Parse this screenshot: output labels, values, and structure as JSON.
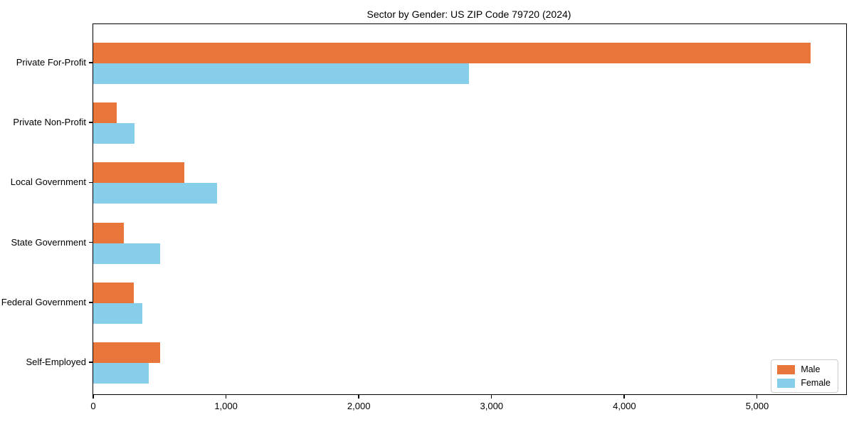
{
  "chart_data": {
    "type": "bar",
    "orientation": "horizontal",
    "title": "Sector by Gender: US ZIP Code 79720 (2024)",
    "categories": [
      "Private For-Profit",
      "Private Non-Profit",
      "Local Government",
      "State Government",
      "Federal Government",
      "Self-Employed"
    ],
    "series": [
      {
        "name": "Male",
        "color": "#e8763b",
        "values": [
          5400,
          175,
          685,
          230,
          305,
          505
        ]
      },
      {
        "name": "Female",
        "color": "#87ceeb",
        "values": [
          2830,
          310,
          935,
          505,
          370,
          420
        ]
      }
    ],
    "xlabel": "",
    "ylabel": "",
    "xlim": [
      0,
      5670
    ],
    "x_ticks": [
      0,
      1000,
      2000,
      3000,
      4000,
      5000
    ],
    "x_tick_labels": [
      "0",
      "1,000",
      "2,000",
      "3,000",
      "4,000",
      "5,000"
    ],
    "grid": false,
    "legend_position": "lower right",
    "background_color": "#ffffff",
    "spine_color": "#000000"
  }
}
